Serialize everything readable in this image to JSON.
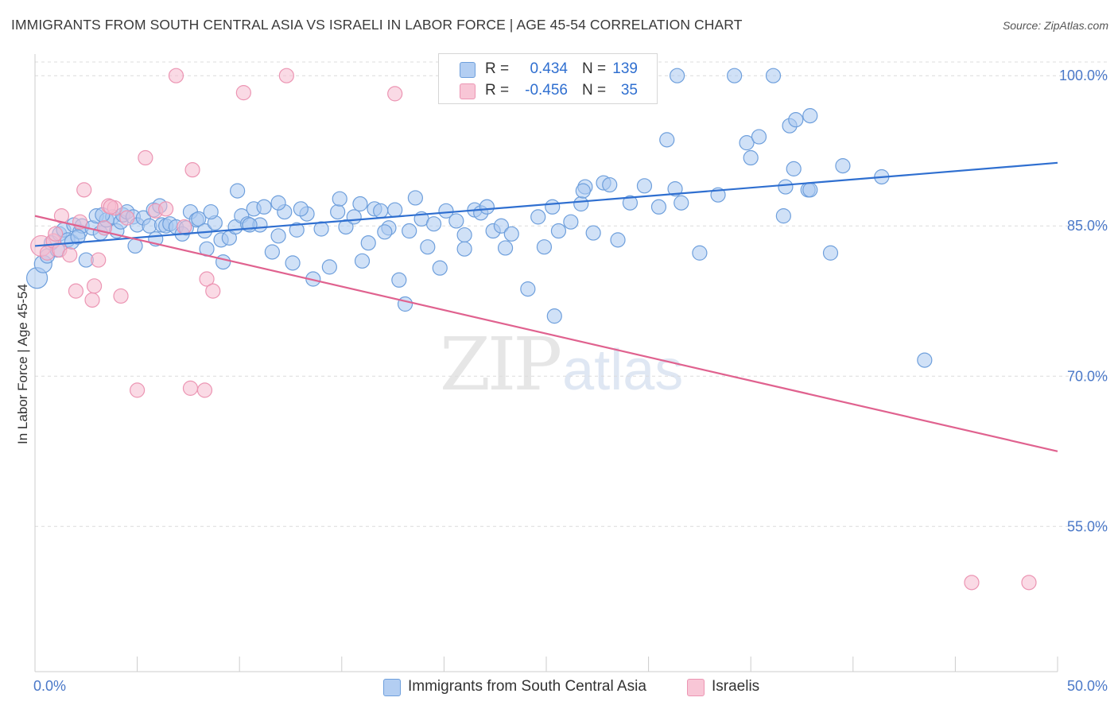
{
  "title": "IMMIGRANTS FROM SOUTH CENTRAL ASIA VS ISRAELI IN LABOR FORCE | AGE 45-54 CORRELATION CHART",
  "source": "Source: ZipAtlas.com",
  "watermark": {
    "zip": "ZIP",
    "atlas": "atlas"
  },
  "legend": {
    "series1": {
      "r_label": "R =",
      "r_value": "0.434",
      "n_label": "N =",
      "n_value": "139"
    },
    "series2": {
      "r_label": "R =",
      "r_value": "-0.456",
      "n_label": "N =",
      "n_value": "35"
    }
  },
  "bottom_legend": {
    "series1": "Immigrants from South Central Asia",
    "series2": "Israelis"
  },
  "colors": {
    "blue_fill": "#a9c8f0",
    "blue_stroke": "#6e9fdc",
    "blue_line": "#2f6fd0",
    "pink_fill": "#f6bcd0",
    "pink_stroke": "#ec95b3",
    "pink_line": "#e0628f",
    "grid": "#dcdcdc",
    "axis": "#cccccc",
    "tick_label": "#4a78c8"
  },
  "chart_data": {
    "type": "scatter",
    "title": "IMMIGRANTS FROM SOUTH CENTRAL ASIA VS ISRAELI IN LABOR FORCE | AGE 45-54 CORRELATION CHART",
    "xlabel": "",
    "ylabel": "In Labor Force | Age 45-54",
    "xlim": [
      0,
      50
    ],
    "ylim": [
      40.5,
      102
    ],
    "x_tick_labels": [
      "0.0%",
      "50.0%"
    ],
    "y_ticks": [
      55,
      70,
      85,
      100
    ],
    "y_tick_labels": [
      "55.0%",
      "70.0%",
      "85.0%",
      "100.0%"
    ],
    "grid": true,
    "legend_position": "top-center",
    "series": [
      {
        "name": "Immigrants from South Central Asia",
        "trend": {
          "x": [
            0,
            50
          ],
          "y": [
            83.0,
            91.3
          ]
        },
        "points": [
          [
            0.1,
            79.8,
            "L"
          ],
          [
            0.4,
            81.2,
            "M"
          ],
          [
            0.6,
            82.0
          ],
          [
            0.8,
            83.3
          ],
          [
            1.1,
            82.6
          ],
          [
            1.2,
            84.2
          ],
          [
            1.4,
            84.6
          ],
          [
            1.6,
            83.6
          ],
          [
            1.8,
            83.4
          ],
          [
            1.9,
            85.1
          ],
          [
            2.2,
            84.4
          ],
          [
            2.3,
            85.0
          ],
          [
            2.5,
            81.6
          ],
          [
            2.8,
            84.8
          ],
          [
            3.0,
            86.0
          ],
          [
            3.2,
            84.3
          ],
          [
            3.4,
            84.8
          ],
          [
            3.5,
            85.6
          ],
          [
            3.8,
            85.9
          ],
          [
            4.0,
            84.5
          ],
          [
            4.2,
            85.4
          ],
          [
            4.3,
            86.1
          ],
          [
            4.5,
            86.4
          ],
          [
            4.8,
            85.9
          ],
          [
            5.0,
            85.1
          ],
          [
            5.3,
            85.8
          ],
          [
            5.6,
            85.0
          ],
          [
            5.8,
            86.6
          ],
          [
            5.9,
            83.7
          ],
          [
            6.2,
            85.1
          ],
          [
            6.4,
            85.0
          ],
          [
            6.6,
            85.2
          ],
          [
            6.9,
            84.9
          ],
          [
            7.2,
            84.2
          ],
          [
            7.4,
            84.8
          ],
          [
            7.6,
            86.4
          ],
          [
            7.9,
            85.6
          ],
          [
            8.0,
            85.7
          ],
          [
            8.3,
            84.5
          ],
          [
            8.4,
            82.7
          ],
          [
            8.8,
            85.3
          ],
          [
            9.1,
            83.6
          ],
          [
            9.2,
            81.4
          ],
          [
            9.5,
            83.8
          ],
          [
            9.8,
            84.9
          ],
          [
            10.1,
            86.0
          ],
          [
            10.4,
            85.2
          ],
          [
            10.7,
            86.7
          ],
          [
            11.0,
            85.1
          ],
          [
            11.2,
            86.9
          ],
          [
            11.6,
            82.4
          ],
          [
            11.9,
            84.0
          ],
          [
            12.2,
            86.4
          ],
          [
            12.6,
            81.3
          ],
          [
            12.8,
            84.6
          ],
          [
            13.3,
            86.2
          ],
          [
            13.6,
            79.7
          ],
          [
            14.0,
            84.7
          ],
          [
            14.4,
            80.9
          ],
          [
            14.8,
            86.4
          ],
          [
            15.2,
            84.9
          ],
          [
            15.6,
            85.9
          ],
          [
            16.0,
            81.5
          ],
          [
            16.3,
            83.3
          ],
          [
            16.6,
            86.7
          ],
          [
            16.9,
            86.5
          ],
          [
            17.3,
            84.8
          ],
          [
            17.6,
            86.6
          ],
          [
            17.8,
            79.6
          ],
          [
            18.1,
            77.2
          ],
          [
            18.3,
            84.5
          ],
          [
            18.9,
            85.7
          ],
          [
            19.2,
            82.9
          ],
          [
            19.5,
            85.2
          ],
          [
            19.8,
            80.8
          ],
          [
            20.1,
            86.5
          ],
          [
            20.6,
            85.5
          ],
          [
            21.0,
            84.1
          ],
          [
            21.5,
            86.6
          ],
          [
            21.8,
            86.3
          ],
          [
            22.1,
            86.9
          ],
          [
            22.4,
            84.5
          ],
          [
            22.8,
            85.0
          ],
          [
            23.0,
            82.8
          ],
          [
            23.3,
            84.2
          ],
          [
            24.1,
            78.7
          ],
          [
            24.6,
            85.9
          ],
          [
            24.9,
            82.9
          ],
          [
            25.3,
            86.9
          ],
          [
            25.6,
            84.5
          ],
          [
            26.2,
            85.4
          ],
          [
            26.7,
            87.2
          ],
          [
            26.9,
            88.9
          ],
          [
            27.3,
            84.3
          ],
          [
            27.8,
            89.3
          ],
          [
            28.1,
            89.1
          ],
          [
            28.5,
            83.6
          ],
          [
            29.1,
            87.3
          ],
          [
            29.8,
            89.0
          ],
          [
            30.5,
            86.9
          ],
          [
            30.9,
            93.6
          ],
          [
            31.3,
            88.7
          ],
          [
            31.4,
            100.0
          ],
          [
            31.6,
            87.3
          ],
          [
            32.5,
            82.3
          ],
          [
            33.4,
            88.1
          ],
          [
            34.2,
            100.0
          ],
          [
            34.8,
            93.3
          ],
          [
            35.0,
            91.8
          ],
          [
            36.1,
            100.0
          ],
          [
            36.6,
            86.0
          ],
          [
            36.7,
            88.9
          ],
          [
            37.1,
            90.7
          ],
          [
            36.9,
            95.0
          ],
          [
            37.2,
            95.6
          ],
          [
            37.9,
            96.0
          ],
          [
            37.8,
            88.6
          ],
          [
            37.9,
            88.6
          ],
          [
            38.9,
            82.3
          ],
          [
            39.5,
            91.0
          ],
          [
            41.4,
            89.9
          ],
          [
            43.5,
            71.6
          ],
          [
            25.4,
            76.0
          ],
          [
            26.8,
            88.5
          ],
          [
            35.4,
            93.9
          ],
          [
            15.9,
            87.2
          ],
          [
            13.0,
            86.7
          ],
          [
            8.6,
            86.4
          ],
          [
            18.6,
            87.8
          ],
          [
            21.0,
            82.7
          ],
          [
            6.1,
            87.0
          ],
          [
            3.3,
            86.1
          ],
          [
            2.1,
            83.9
          ],
          [
            4.9,
            83.0
          ],
          [
            11.9,
            87.3
          ],
          [
            10.5,
            85.1
          ],
          [
            17.1,
            84.4
          ],
          [
            9.9,
            88.5
          ],
          [
            14.9,
            87.7
          ]
        ]
      },
      {
        "name": "Israelis",
        "trend": {
          "x": [
            0,
            50
          ],
          "y": [
            86.0,
            62.5
          ]
        },
        "points": [
          [
            0.3,
            83.0,
            "L"
          ],
          [
            0.6,
            82.3
          ],
          [
            0.9,
            83.5
          ],
          [
            1.2,
            82.6
          ],
          [
            1.3,
            86.0
          ],
          [
            1.7,
            82.1
          ],
          [
            2.0,
            78.5
          ],
          [
            2.2,
            85.4
          ],
          [
            2.4,
            88.6
          ],
          [
            2.8,
            77.6
          ],
          [
            2.9,
            79.0
          ],
          [
            3.1,
            81.6
          ],
          [
            3.4,
            84.8
          ],
          [
            3.6,
            87.0
          ],
          [
            3.9,
            86.8
          ],
          [
            4.2,
            78.0
          ],
          [
            4.5,
            85.8
          ],
          [
            5.0,
            68.6
          ],
          [
            5.4,
            91.8
          ],
          [
            5.9,
            86.5
          ],
          [
            6.4,
            86.7
          ],
          [
            6.9,
            100.0
          ],
          [
            7.3,
            84.9
          ],
          [
            7.6,
            68.8
          ],
          [
            7.7,
            90.6
          ],
          [
            8.3,
            68.6
          ],
          [
            8.4,
            79.7
          ],
          [
            8.7,
            78.5
          ],
          [
            10.2,
            98.3
          ],
          [
            12.3,
            100.0
          ],
          [
            17.6,
            98.2
          ],
          [
            1.0,
            84.2
          ],
          [
            3.7,
            86.9
          ],
          [
            45.8,
            49.4
          ],
          [
            48.6,
            49.4
          ]
        ]
      }
    ]
  }
}
